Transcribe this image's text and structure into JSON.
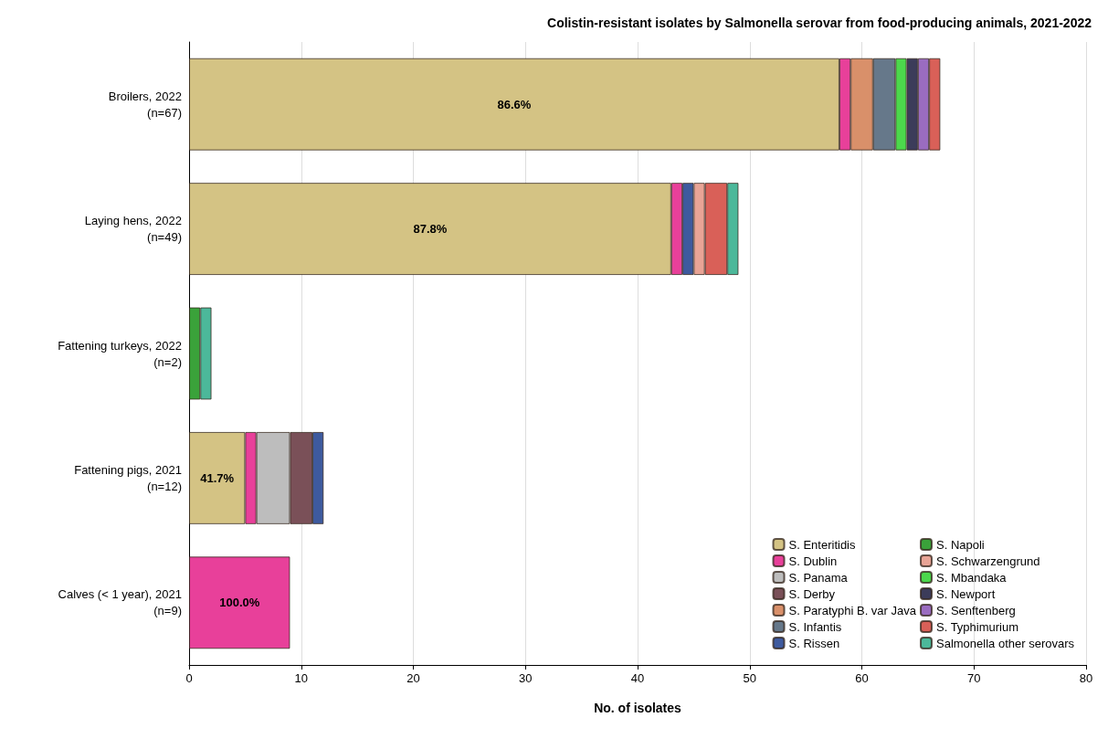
{
  "chart_data": {
    "type": "bar",
    "orientation": "horizontal",
    "stacked": true,
    "title": "Colistin-resistant isolates by Salmonella serovar from food-producing animals, 2021-2022",
    "xlabel": "No. of isolates",
    "categories": [
      "Broilers, 2022\n(n=67)",
      "Laying hens, 2022\n(n=49)",
      "Fattening turkeys, 2022\n(n=2)",
      "Fattening pigs, 2021\n(n=12)",
      "Calves (< 1 year), 2021\n(n=9)"
    ],
    "xlim": [
      0,
      80
    ],
    "xticks": [
      0,
      10,
      20,
      30,
      40,
      50,
      60,
      70,
      80
    ],
    "grid": "x",
    "legend": "bottom right",
    "series": [
      {
        "name": "S. Enteritidis",
        "color": "#d4c384",
        "values": [
          58,
          43,
          null,
          5,
          null
        ]
      },
      {
        "name": "S. Dublin",
        "color": "#e8409a",
        "values": [
          1,
          1,
          null,
          1,
          9
        ]
      },
      {
        "name": "S. Panama",
        "color": "#bdbdbd",
        "values": [
          null,
          null,
          null,
          3,
          null
        ]
      },
      {
        "name": "S. Derby",
        "color": "#7a5058",
        "values": [
          null,
          null,
          null,
          2,
          null
        ]
      },
      {
        "name": "S. Paratyphi B. var Java",
        "color": "#d9906a",
        "values": [
          2,
          null,
          null,
          null,
          null
        ]
      },
      {
        "name": "S. Infantis",
        "color": "#66788a",
        "values": [
          2,
          null,
          null,
          null,
          null
        ]
      },
      {
        "name": "S. Rissen",
        "color": "#3e5a9e",
        "values": [
          null,
          1,
          null,
          1,
          null
        ]
      },
      {
        "name": "S. Napoli",
        "color": "#3aa23a",
        "values": [
          null,
          null,
          1,
          null,
          null
        ]
      },
      {
        "name": "S. Schwarzengrund",
        "color": "#e8a496",
        "values": [
          null,
          1,
          null,
          null,
          null
        ]
      },
      {
        "name": "S. Mbandaka",
        "color": "#4cd84c",
        "values": [
          1,
          null,
          null,
          null,
          null
        ]
      },
      {
        "name": "S. Newport",
        "color": "#3c3c5a",
        "values": [
          1,
          null,
          null,
          null,
          null
        ]
      },
      {
        "name": "S. Senftenberg",
        "color": "#9a6cc0",
        "values": [
          1,
          null,
          null,
          null,
          null
        ]
      },
      {
        "name": "S. Typhimurium",
        "color": "#d96058",
        "values": [
          1,
          2,
          null,
          null,
          null
        ]
      },
      {
        "name": "Salmonella other serovars",
        "color": "#4cb89a",
        "values": [
          null,
          1,
          1,
          null,
          null
        ]
      }
    ],
    "annotations": [
      "86.6%",
      "87.8%",
      {
        "text": "41.7%",
        "x": 5,
        "y": "Fattening pigs, 2021\n(n=12)"
      },
      {
        "text": "100.0%",
        "x": 9,
        "y": "Calves (< 1 year), 2021\n(n=9)"
      }
    ]
  }
}
